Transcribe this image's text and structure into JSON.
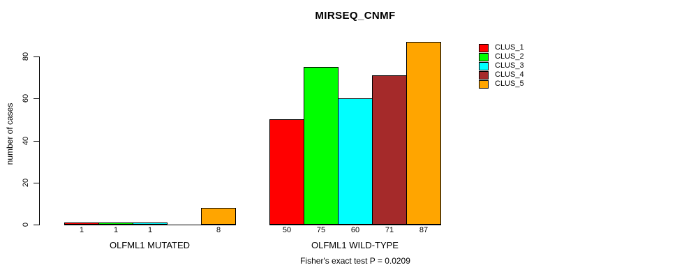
{
  "title": "MIRSEQ_CNMF",
  "ylabel": "number of cases",
  "footer": "Fisher's exact test P = 0.0209",
  "chart_data": {
    "type": "bar",
    "title": "MIRSEQ_CNMF",
    "ylabel": "number of cases",
    "xlabel": "",
    "categories": [
      "OLFML1 MUTATED",
      "OLFML1 WILD-TYPE"
    ],
    "series": [
      {
        "name": "CLUS_1",
        "color": "#FF0000",
        "values": [
          1,
          50
        ]
      },
      {
        "name": "CLUS_2",
        "color": "#00FF00",
        "values": [
          1,
          75
        ]
      },
      {
        "name": "CLUS_3",
        "color": "#00FFFF",
        "values": [
          1,
          60
        ]
      },
      {
        "name": "CLUS_4",
        "color": "#A52A2A",
        "values": [
          0,
          71
        ]
      },
      {
        "name": "CLUS_5",
        "color": "#FFA500",
        "values": [
          8,
          87
        ]
      }
    ],
    "bar_value_labels": {
      "OLFML1 MUTATED": [
        "1",
        "1",
        "1",
        "",
        "8"
      ],
      "OLFML1 WILD-TYPE": [
        "50",
        "75",
        "60",
        "71",
        "87"
      ]
    },
    "yticks": [
      0,
      20,
      40,
      60,
      80
    ],
    "ylim": [
      0,
      87
    ],
    "grid": false,
    "legend_position": "right-outside",
    "annotation": "Fisher's exact test P = 0.0209",
    "axis_color": "#000000",
    "bar_border_color": "#000000"
  }
}
